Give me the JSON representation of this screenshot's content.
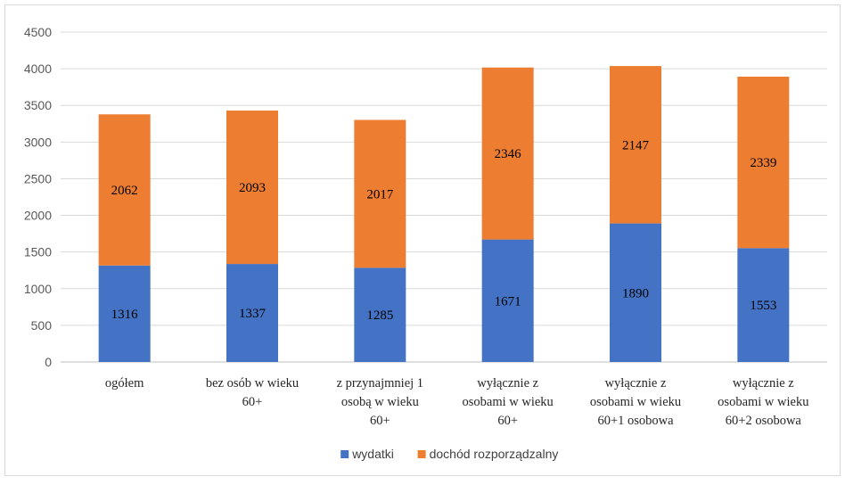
{
  "chart_data": {
    "type": "bar",
    "stacked": true,
    "title": "",
    "xlabel": "",
    "ylabel": "",
    "ylim": [
      0,
      4500
    ],
    "y_ticks": [
      0,
      500,
      1000,
      1500,
      2000,
      2500,
      3000,
      3500,
      4000,
      4500
    ],
    "grid": true,
    "legend_position": "bottom",
    "categories": [
      [
        "ogółem"
      ],
      [
        "bez osób w wieku",
        "60+"
      ],
      [
        "z przynajmniej 1",
        "osobą w wieku",
        "60+"
      ],
      [
        "wyłącznie z",
        "osobami w wieku",
        "60+"
      ],
      [
        "wyłącznie z",
        "osobami w wieku",
        "60+1 osobowa"
      ],
      [
        "wyłącznie z",
        "osobami w wieku",
        "60+2 osobowa"
      ]
    ],
    "series": [
      {
        "name": "wydatki",
        "color": "#4472c4",
        "values": [
          1316,
          1337,
          1285,
          1671,
          1890,
          1553
        ]
      },
      {
        "name": "dochód rozporządzalny",
        "color": "#ed7d31",
        "values": [
          2062,
          2093,
          2017,
          2346,
          2147,
          2339
        ]
      }
    ]
  },
  "colors": {
    "grid": "#d9d9d9",
    "axis": "#bfbfbf"
  }
}
